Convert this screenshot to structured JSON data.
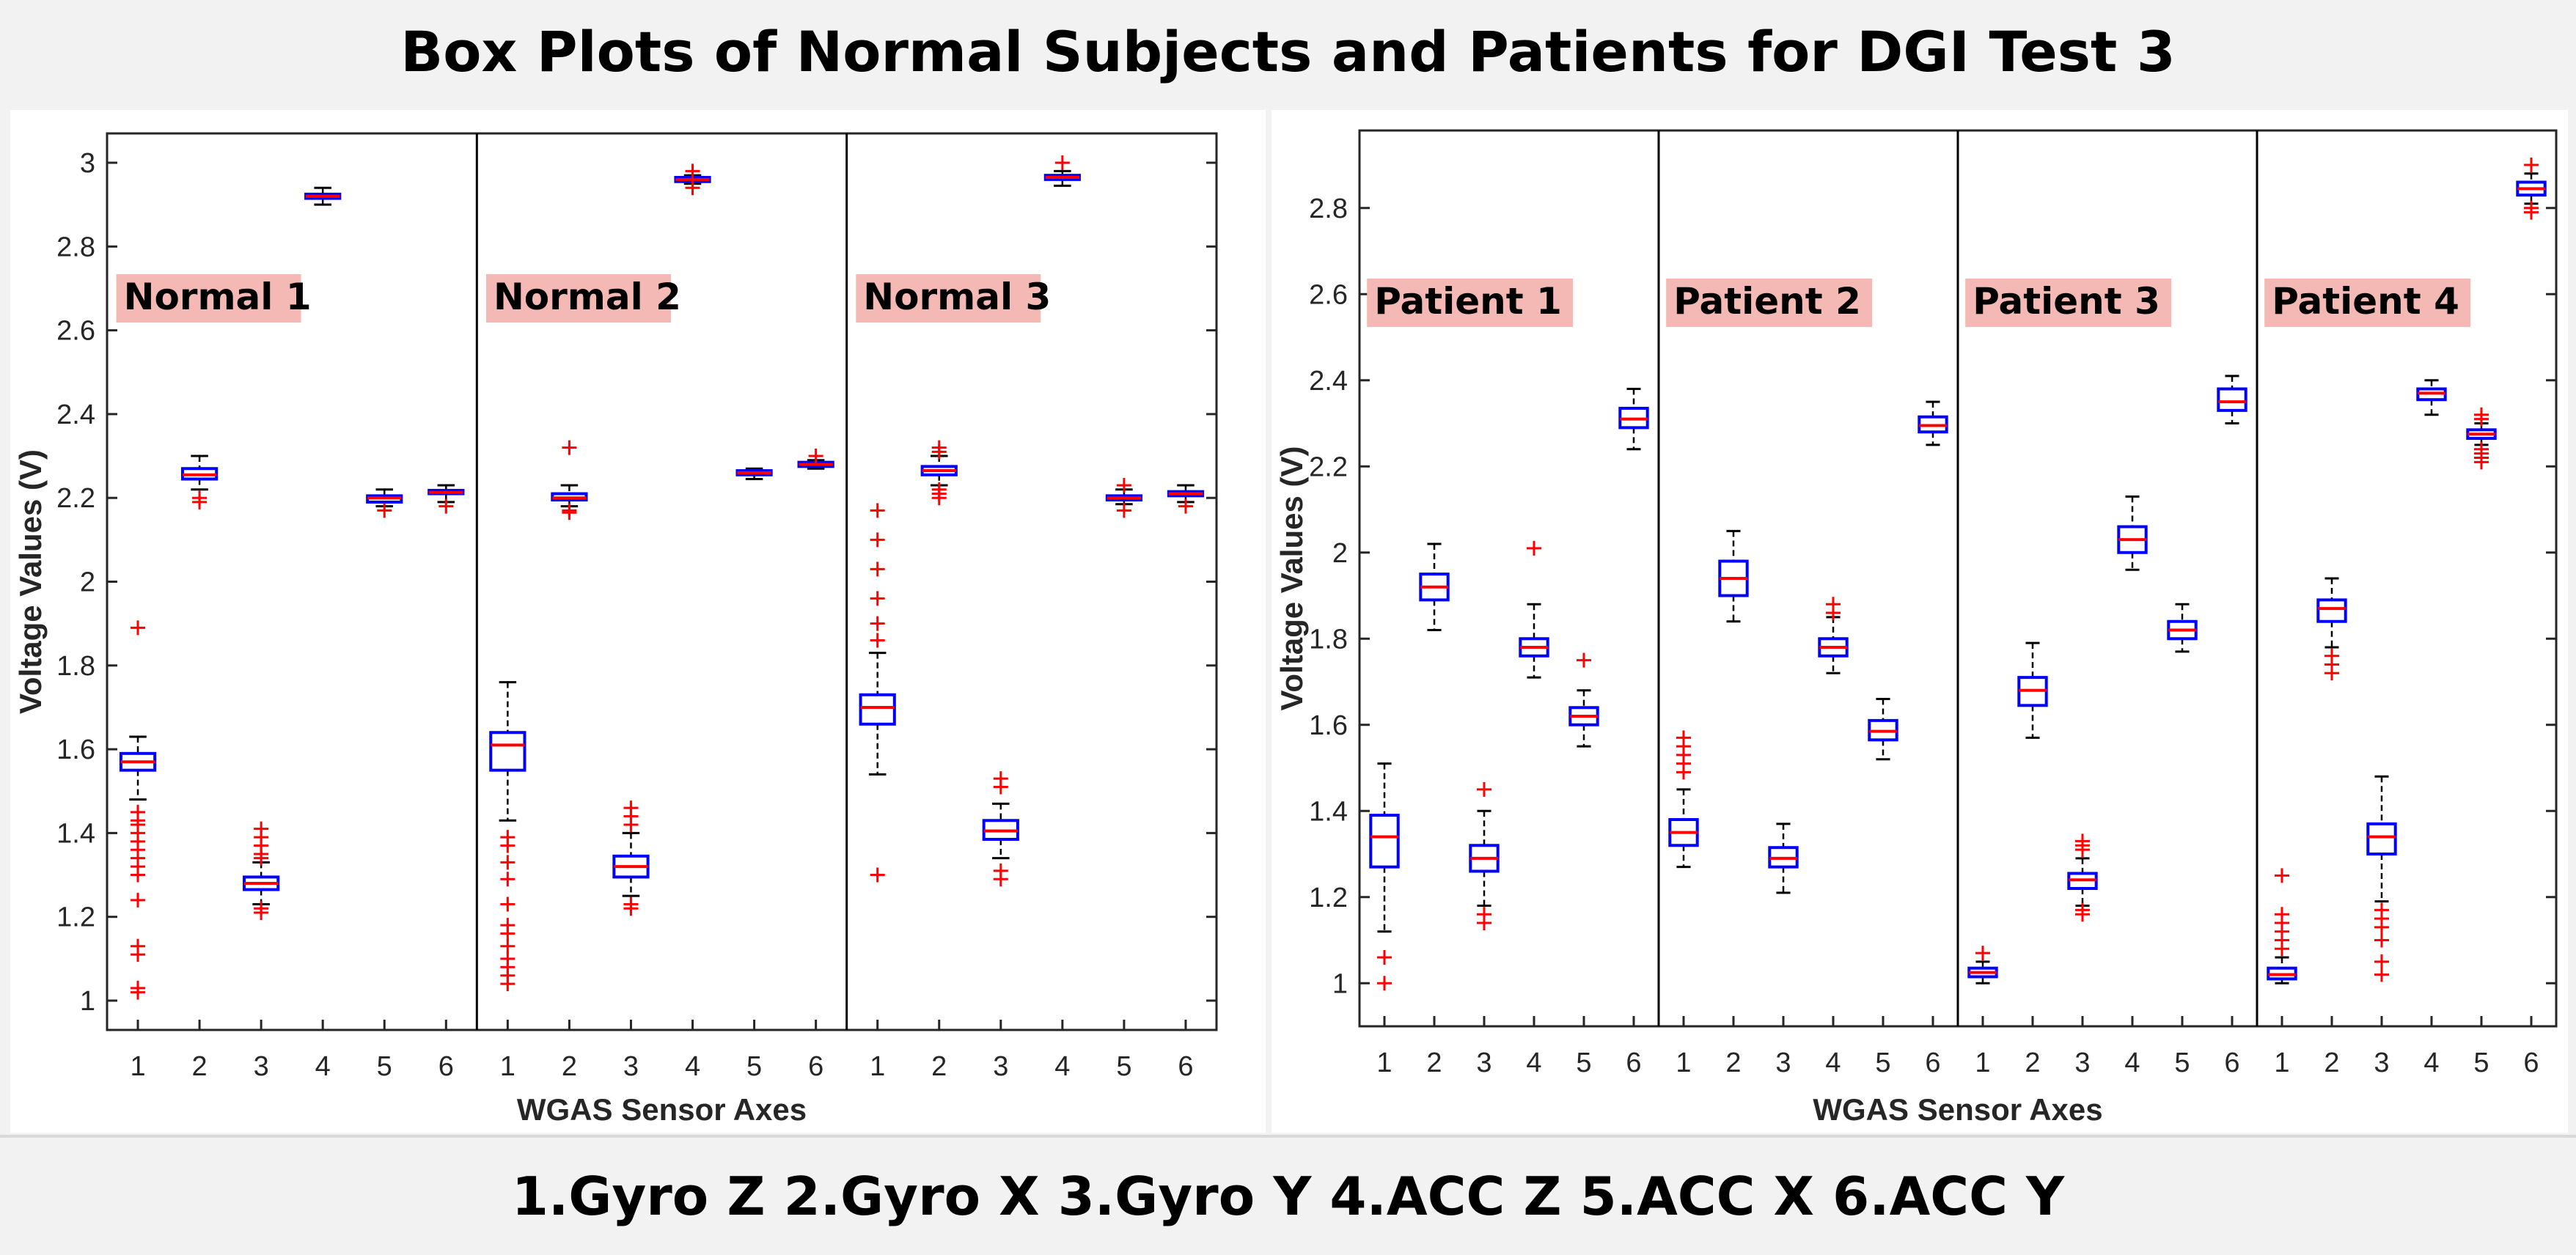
{
  "title": "Box Plots of Normal Subjects and Patients for DGI Test 3",
  "legend": "1.Gyro Z  2.Gyro X 3.Gyro Y 4.ACC Z 5.ACC X 6.ACC Y",
  "colors": {
    "box": "#0000ff",
    "median": "#ff0000",
    "outlier": "#ff0000",
    "whisker": "#000000",
    "label_bg": "#f4b8b5"
  },
  "chart_data": [
    {
      "type": "box",
      "xlabel": "WGAS Sensor Axes",
      "ylabel": "Voltage Values (V)",
      "ylim": [
        0.93,
        3.07
      ],
      "yticks": [
        1,
        1.2,
        1.4,
        1.6,
        1.8,
        2,
        2.2,
        2.4,
        2.6,
        2.8,
        3
      ],
      "ytick_labels": [
        "1",
        "1.2",
        "1.4",
        "1.6",
        "1.8",
        "2",
        "2.2",
        "2.4",
        "2.6",
        "2.8",
        "3"
      ],
      "groups": [
        {
          "label": "Normal 1",
          "axes": [
            {
              "x": "1",
              "min": 1.48,
              "q1": 1.55,
              "median": 1.57,
              "q3": 1.59,
              "max": 1.63,
              "outliers": [
                1.89,
                1.45,
                1.43,
                1.42,
                1.4,
                1.38,
                1.36,
                1.34,
                1.32,
                1.3,
                1.24,
                1.13,
                1.11,
                1.03,
                1.02
              ]
            },
            {
              "x": "2",
              "min": 2.22,
              "q1": 2.245,
              "median": 2.255,
              "q3": 2.27,
              "max": 2.3,
              "outliers": [
                2.2,
                2.19
              ]
            },
            {
              "x": "3",
              "min": 1.23,
              "q1": 1.265,
              "median": 1.28,
              "q3": 1.295,
              "max": 1.33,
              "outliers": [
                1.41,
                1.39,
                1.37,
                1.35,
                1.34,
                1.22,
                1.21
              ]
            },
            {
              "x": "4",
              "min": 2.9,
              "q1": 2.915,
              "median": 2.92,
              "q3": 2.925,
              "max": 2.94,
              "outliers": []
            },
            {
              "x": "5",
              "min": 2.18,
              "q1": 2.19,
              "median": 2.2,
              "q3": 2.205,
              "max": 2.22,
              "outliers": [
                2.17
              ]
            },
            {
              "x": "6",
              "min": 2.19,
              "q1": 2.21,
              "median": 2.213,
              "q3": 2.218,
              "max": 2.23,
              "outliers": [
                2.18
              ]
            }
          ]
        },
        {
          "label": "Normal 2",
          "axes": [
            {
              "x": "1",
              "min": 1.43,
              "q1": 1.55,
              "median": 1.61,
              "q3": 1.64,
              "max": 1.76,
              "outliers": [
                1.39,
                1.37,
                1.33,
                1.29,
                1.23,
                1.18,
                1.16,
                1.13,
                1.1,
                1.08,
                1.06,
                1.04
              ]
            },
            {
              "x": "2",
              "min": 2.18,
              "q1": 2.195,
              "median": 2.2,
              "q3": 2.21,
              "max": 2.23,
              "outliers": [
                2.32,
                2.17,
                2.165
              ]
            },
            {
              "x": "3",
              "min": 1.25,
              "q1": 1.295,
              "median": 1.32,
              "q3": 1.345,
              "max": 1.4,
              "outliers": [
                1.46,
                1.44,
                1.42,
                1.23,
                1.22
              ]
            },
            {
              "x": "4",
              "min": 2.95,
              "q1": 2.955,
              "median": 2.96,
              "q3": 2.965,
              "max": 2.97,
              "outliers": [
                2.98,
                2.94
              ]
            },
            {
              "x": "5",
              "min": 2.245,
              "q1": 2.255,
              "median": 2.26,
              "q3": 2.265,
              "max": 2.27,
              "outliers": []
            },
            {
              "x": "6",
              "min": 2.27,
              "q1": 2.275,
              "median": 2.28,
              "q3": 2.285,
              "max": 2.29,
              "outliers": [
                2.3
              ]
            }
          ]
        },
        {
          "label": "Normal 3",
          "axes": [
            {
              "x": "1",
              "min": 1.54,
              "q1": 1.66,
              "median": 1.7,
              "q3": 1.73,
              "max": 1.83,
              "outliers": [
                2.17,
                2.1,
                2.03,
                1.96,
                1.9,
                1.86,
                1.3
              ]
            },
            {
              "x": "2",
              "min": 2.23,
              "q1": 2.255,
              "median": 2.265,
              "q3": 2.275,
              "max": 2.3,
              "outliers": [
                2.32,
                2.31,
                2.22,
                2.21,
                2.2
              ]
            },
            {
              "x": "3",
              "min": 1.34,
              "q1": 1.385,
              "median": 1.405,
              "q3": 1.43,
              "max": 1.47,
              "outliers": [
                1.53,
                1.51,
                1.31,
                1.29
              ]
            },
            {
              "x": "4",
              "min": 2.945,
              "q1": 2.96,
              "median": 2.965,
              "q3": 2.97,
              "max": 2.98,
              "outliers": [
                3.0
              ]
            },
            {
              "x": "5",
              "min": 2.185,
              "q1": 2.195,
              "median": 2.2,
              "q3": 2.205,
              "max": 2.22,
              "outliers": [
                2.23,
                2.17
              ]
            },
            {
              "x": "6",
              "min": 2.19,
              "q1": 2.205,
              "median": 2.21,
              "q3": 2.215,
              "max": 2.23,
              "outliers": [
                2.18
              ]
            }
          ]
        }
      ]
    },
    {
      "type": "box",
      "xlabel": "WGAS Sensor Axes",
      "ylabel": "Voltage Values (V)",
      "ylim": [
        0.9,
        2.98
      ],
      "yticks": [
        1,
        1.2,
        1.4,
        1.6,
        1.8,
        2,
        2.2,
        2.4,
        2.6,
        2.8
      ],
      "ytick_labels": [
        "1",
        "1.2",
        "1.4",
        "1.6",
        "1.8",
        "2",
        "2.2",
        "2.4",
        "2.6",
        "2.8"
      ],
      "groups": [
        {
          "label": "Patient 1",
          "axes": [
            {
              "x": "1",
              "min": 1.12,
              "q1": 1.27,
              "median": 1.34,
              "q3": 1.39,
              "max": 1.51,
              "outliers": [
                1.06,
                1.0
              ]
            },
            {
              "x": "2",
              "min": 1.82,
              "q1": 1.89,
              "median": 1.92,
              "q3": 1.95,
              "max": 2.02,
              "outliers": []
            },
            {
              "x": "3",
              "min": 1.18,
              "q1": 1.26,
              "median": 1.29,
              "q3": 1.32,
              "max": 1.4,
              "outliers": [
                1.45,
                1.16,
                1.14
              ]
            },
            {
              "x": "4",
              "min": 1.71,
              "q1": 1.76,
              "median": 1.78,
              "q3": 1.8,
              "max": 1.88,
              "outliers": [
                2.01
              ]
            },
            {
              "x": "5",
              "min": 1.55,
              "q1": 1.6,
              "median": 1.62,
              "q3": 1.64,
              "max": 1.68,
              "outliers": [
                1.75
              ]
            },
            {
              "x": "6",
              "min": 2.24,
              "q1": 2.29,
              "median": 2.31,
              "q3": 2.335,
              "max": 2.38,
              "outliers": []
            }
          ]
        },
        {
          "label": "Patient 2",
          "axes": [
            {
              "x": "1",
              "min": 1.27,
              "q1": 1.32,
              "median": 1.35,
              "q3": 1.38,
              "max": 1.45,
              "outliers": [
                1.57,
                1.55,
                1.53,
                1.51,
                1.49
              ]
            },
            {
              "x": "2",
              "min": 1.84,
              "q1": 1.9,
              "median": 1.94,
              "q3": 1.98,
              "max": 2.05,
              "outliers": []
            },
            {
              "x": "3",
              "min": 1.21,
              "q1": 1.27,
              "median": 1.29,
              "q3": 1.315,
              "max": 1.37,
              "outliers": []
            },
            {
              "x": "4",
              "min": 1.72,
              "q1": 1.76,
              "median": 1.78,
              "q3": 1.8,
              "max": 1.85,
              "outliers": [
                1.88,
                1.86
              ]
            },
            {
              "x": "5",
              "min": 1.52,
              "q1": 1.565,
              "median": 1.585,
              "q3": 1.61,
              "max": 1.66,
              "outliers": []
            },
            {
              "x": "6",
              "min": 2.25,
              "q1": 2.28,
              "median": 2.295,
              "q3": 2.315,
              "max": 2.35,
              "outliers": []
            }
          ]
        },
        {
          "label": "Patient 3",
          "axes": [
            {
              "x": "1",
              "min": 1.0,
              "q1": 1.015,
              "median": 1.025,
              "q3": 1.035,
              "max": 1.05,
              "outliers": [
                1.07
              ]
            },
            {
              "x": "2",
              "min": 1.57,
              "q1": 1.645,
              "median": 1.68,
              "q3": 1.71,
              "max": 1.79,
              "outliers": []
            },
            {
              "x": "3",
              "min": 1.18,
              "q1": 1.22,
              "median": 1.24,
              "q3": 1.255,
              "max": 1.29,
              "outliers": [
                1.33,
                1.32,
                1.31,
                1.17,
                1.16
              ]
            },
            {
              "x": "4",
              "min": 1.96,
              "q1": 2.0,
              "median": 2.03,
              "q3": 2.06,
              "max": 2.13,
              "outliers": []
            },
            {
              "x": "5",
              "min": 1.77,
              "q1": 1.8,
              "median": 1.82,
              "q3": 1.84,
              "max": 1.88,
              "outliers": []
            },
            {
              "x": "6",
              "min": 2.3,
              "q1": 2.33,
              "median": 2.35,
              "q3": 2.38,
              "max": 2.41,
              "outliers": []
            }
          ]
        },
        {
          "label": "Patient 4",
          "axes": [
            {
              "x": "1",
              "min": 1.0,
              "q1": 1.01,
              "median": 1.02,
              "q3": 1.035,
              "max": 1.06,
              "outliers": [
                1.25,
                1.16,
                1.14,
                1.12,
                1.1,
                1.08
              ]
            },
            {
              "x": "2",
              "min": 1.78,
              "q1": 1.84,
              "median": 1.87,
              "q3": 1.89,
              "max": 1.94,
              "outliers": [
                1.76,
                1.74,
                1.72
              ]
            },
            {
              "x": "3",
              "min": 1.19,
              "q1": 1.3,
              "median": 1.34,
              "q3": 1.37,
              "max": 1.48,
              "outliers": [
                1.17,
                1.15,
                1.13,
                1.1,
                1.05,
                1.02
              ]
            },
            {
              "x": "4",
              "min": 2.32,
              "q1": 2.355,
              "median": 2.37,
              "q3": 2.38,
              "max": 2.4,
              "outliers": []
            },
            {
              "x": "5",
              "min": 2.25,
              "q1": 2.265,
              "median": 2.275,
              "q3": 2.285,
              "max": 2.3,
              "outliers": [
                2.32,
                2.31,
                2.24,
                2.23,
                2.22,
                2.21
              ]
            },
            {
              "x": "6",
              "min": 2.81,
              "q1": 2.83,
              "median": 2.845,
              "q3": 2.86,
              "max": 2.88,
              "outliers": [
                2.9,
                2.8,
                2.79
              ]
            }
          ]
        }
      ]
    }
  ]
}
